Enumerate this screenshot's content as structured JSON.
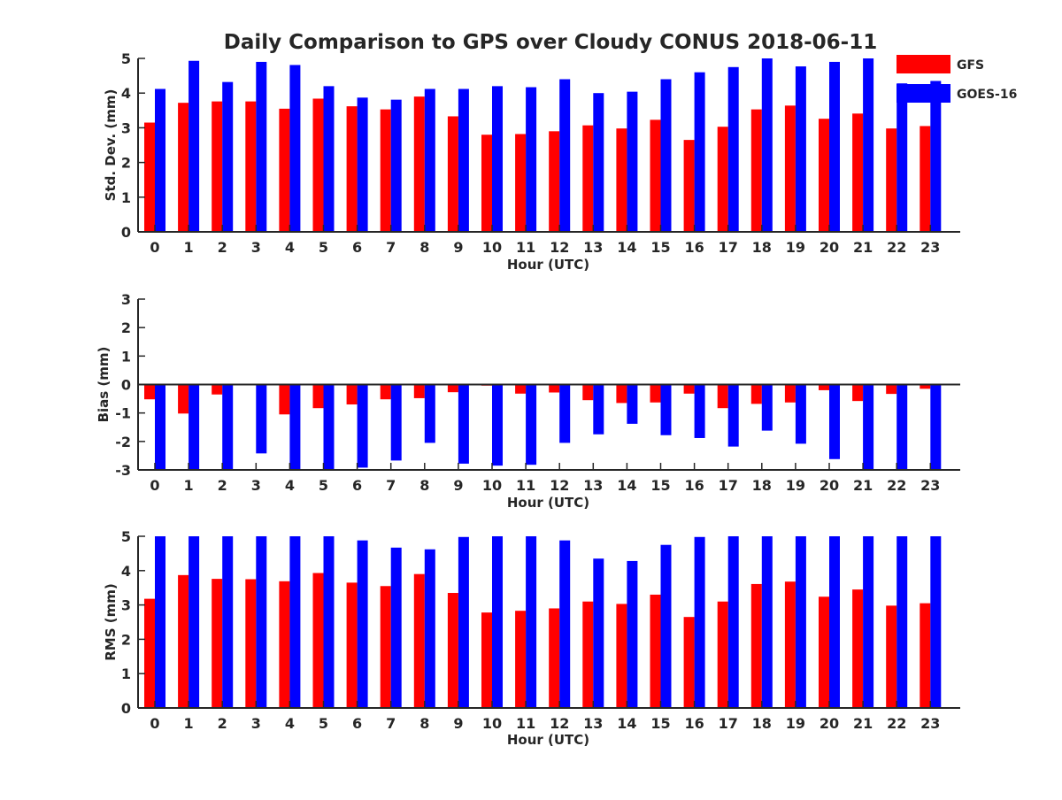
{
  "title": "Daily Comparison to GPS over Cloudy CONUS 2018-06-11",
  "colors": {
    "GFS": "#ff0000",
    "GOES-16": "#0000ff",
    "axis": "#262626"
  },
  "chart_data": [
    {
      "type": "bar",
      "title": "Daily Comparison to GPS over Cloudy CONUS 2018-06-11",
      "xlabel": "Hour (UTC)",
      "ylabel": "Std. Dev. (mm)",
      "categories": [
        "0",
        "1",
        "2",
        "3",
        "4",
        "5",
        "6",
        "7",
        "8",
        "9",
        "10",
        "11",
        "12",
        "13",
        "14",
        "15",
        "16",
        "17",
        "18",
        "19",
        "20",
        "21",
        "22",
        "23"
      ],
      "ylim": [
        0,
        5
      ],
      "yticks": [
        0,
        1,
        2,
        3,
        4,
        5
      ],
      "legend": {
        "entries": [
          "GFS",
          "GOES-16"
        ],
        "placement": "top-right"
      },
      "series": [
        {
          "name": "GFS",
          "values": [
            3.15,
            3.72,
            3.76,
            3.76,
            3.55,
            3.84,
            3.62,
            3.53,
            3.9,
            3.33,
            2.8,
            2.82,
            2.9,
            3.07,
            2.98,
            3.23,
            2.65,
            3.03,
            3.53,
            3.64,
            3.26,
            3.41,
            2.98,
            3.05
          ]
        },
        {
          "name": "GOES-16",
          "values": [
            4.12,
            4.93,
            4.32,
            4.9,
            4.81,
            4.2,
            3.87,
            3.81,
            4.12,
            4.12,
            4.2,
            4.17,
            4.4,
            4.0,
            4.04,
            4.4,
            4.6,
            4.75,
            5.0,
            4.77,
            4.9,
            5.0,
            4.28,
            4.35
          ]
        }
      ]
    },
    {
      "type": "bar",
      "xlabel": "Hour (UTC)",
      "ylabel": "Bias (mm)",
      "categories": [
        "0",
        "1",
        "2",
        "3",
        "4",
        "5",
        "6",
        "7",
        "8",
        "9",
        "10",
        "11",
        "12",
        "13",
        "14",
        "15",
        "16",
        "17",
        "18",
        "19",
        "20",
        "21",
        "22",
        "23"
      ],
      "ylim": [
        -3,
        3
      ],
      "yticks": [
        -3,
        -2,
        -1,
        0,
        1,
        2,
        3
      ],
      "zero_line": true,
      "series": [
        {
          "name": "GFS",
          "values": [
            -0.52,
            -1.02,
            -0.35,
            -0.01,
            -1.05,
            -0.83,
            -0.7,
            -0.52,
            -0.48,
            -0.27,
            -0.04,
            -0.32,
            -0.28,
            -0.55,
            -0.65,
            -0.63,
            -0.32,
            -0.83,
            -0.68,
            -0.63,
            -0.2,
            -0.58,
            -0.33,
            -0.15
          ]
        },
        {
          "name": "GOES-16",
          "values": [
            -3.0,
            -3.0,
            -3.0,
            -2.42,
            -3.0,
            -3.0,
            -2.92,
            -2.67,
            -2.05,
            -2.78,
            -2.85,
            -2.82,
            -2.05,
            -1.75,
            -1.38,
            -1.78,
            -1.88,
            -2.18,
            -1.62,
            -2.08,
            -2.62,
            -3.0,
            -3.0,
            -3.0
          ]
        }
      ]
    },
    {
      "type": "bar",
      "xlabel": "Hour (UTC)",
      "ylabel": "RMS (mm)",
      "categories": [
        "0",
        "1",
        "2",
        "3",
        "4",
        "5",
        "6",
        "7",
        "8",
        "9",
        "10",
        "11",
        "12",
        "13",
        "14",
        "15",
        "16",
        "17",
        "18",
        "19",
        "20",
        "21",
        "22",
        "23"
      ],
      "ylim": [
        0,
        5
      ],
      "yticks": [
        0,
        1,
        2,
        3,
        4,
        5
      ],
      "series": [
        {
          "name": "GFS",
          "values": [
            3.18,
            3.87,
            3.76,
            3.75,
            3.69,
            3.93,
            3.65,
            3.55,
            3.9,
            3.35,
            2.78,
            2.83,
            2.9,
            3.1,
            3.03,
            3.3,
            2.65,
            3.1,
            3.61,
            3.68,
            3.24,
            3.45,
            2.98,
            3.05
          ]
        },
        {
          "name": "GOES-16",
          "values": [
            5.0,
            5.0,
            5.0,
            5.0,
            5.0,
            5.0,
            4.88,
            4.67,
            4.62,
            4.98,
            5.0,
            5.0,
            4.88,
            4.35,
            4.28,
            4.75,
            4.98,
            5.0,
            5.0,
            5.0,
            5.0,
            5.0,
            5.0,
            5.0
          ]
        }
      ]
    }
  ]
}
